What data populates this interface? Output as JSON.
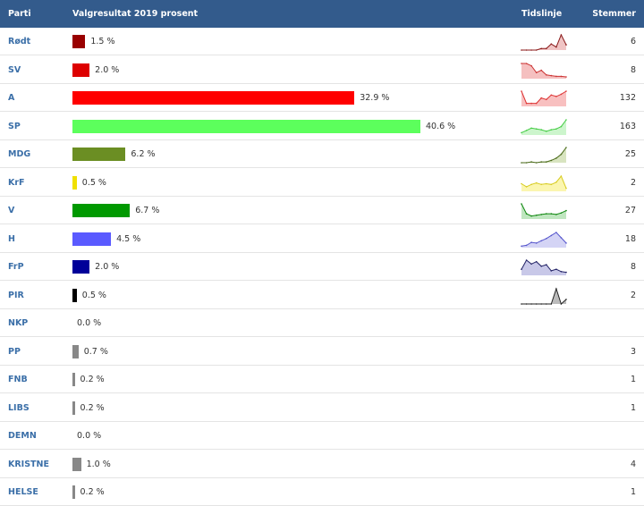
{
  "header": {
    "party": "Parti",
    "result": "Valgresultat 2019 prosent",
    "timeline": "Tidslinje",
    "votes": "Stemmer"
  },
  "chart_data": {
    "type": "bar",
    "title": "Valgresultat 2019 prosent",
    "xlim": [
      0,
      40.6
    ],
    "rows": [
      {
        "party": "Rødt",
        "value": 1.5,
        "label": "1.5 %",
        "votes": "6",
        "color": "#990000",
        "spark_color": "#8b1a1a",
        "spark_fill": "#f0c4c4",
        "timeline": [
          0,
          0,
          0,
          0,
          0.1,
          0.1,
          0.4,
          0.2,
          1.0,
          0.35
        ]
      },
      {
        "party": "SV",
        "value": 2.0,
        "label": "2.0 %",
        "votes": "8",
        "color": "#dd0000",
        "spark_color": "#cc3333",
        "spark_fill": "#f5c0c0",
        "timeline": [
          1.0,
          1.0,
          0.85,
          0.4,
          0.55,
          0.25,
          0.2,
          0.15,
          0.15,
          0.12
        ]
      },
      {
        "party": "A",
        "value": 32.9,
        "label": "32.9 %",
        "votes": "132",
        "color": "#ff0000",
        "spark_color": "#dd3333",
        "spark_fill": "#f8c0c0",
        "timeline": [
          1.0,
          0.2,
          0.2,
          0.2,
          0.55,
          0.45,
          0.75,
          0.65,
          0.8,
          1.0
        ]
      },
      {
        "party": "SP",
        "value": 40.6,
        "label": "40.6 %",
        "votes": "163",
        "color": "#5cff5c",
        "spark_color": "#44cc44",
        "spark_fill": "#ccf5cc",
        "timeline": [
          0.15,
          0.3,
          0.45,
          0.4,
          0.35,
          0.25,
          0.35,
          0.4,
          0.55,
          1.0
        ]
      },
      {
        "party": "MDG",
        "value": 6.2,
        "label": "6.2 %",
        "votes": "25",
        "color": "#6b8e23",
        "spark_color": "#4a6a1a",
        "spark_fill": "#d8e4c0",
        "timeline": [
          0,
          0,
          0.05,
          0,
          0.05,
          0.05,
          0.15,
          0.3,
          0.55,
          1.0
        ]
      },
      {
        "party": "KrF",
        "value": 0.5,
        "label": "0.5 %",
        "votes": "2",
        "color": "#f0e000",
        "spark_color": "#d8cc22",
        "spark_fill": "#fbf6b0",
        "timeline": [
          0.5,
          0.3,
          0.45,
          0.55,
          0.45,
          0.5,
          0.45,
          0.6,
          1.0,
          0.2
        ]
      },
      {
        "party": "V",
        "value": 6.7,
        "label": "6.7 %",
        "votes": "27",
        "color": "#009900",
        "spark_color": "#118811",
        "spark_fill": "#bfe6bf",
        "timeline": [
          1.0,
          0.35,
          0.2,
          0.25,
          0.3,
          0.35,
          0.35,
          0.3,
          0.4,
          0.55
        ]
      },
      {
        "party": "H",
        "value": 4.5,
        "label": "4.5 %",
        "votes": "18",
        "color": "#5a5aff",
        "spark_color": "#5555cc",
        "spark_fill": "#d4d4f5",
        "timeline": [
          0.1,
          0.15,
          0.35,
          0.3,
          0.45,
          0.6,
          0.8,
          1.0,
          0.65,
          0.3
        ]
      },
      {
        "party": "FrP",
        "value": 2.0,
        "label": "2.0 %",
        "votes": "8",
        "color": "#000099",
        "spark_color": "#222266",
        "spark_fill": "#c8c8e8",
        "timeline": [
          0.4,
          1.0,
          0.75,
          0.9,
          0.6,
          0.7,
          0.3,
          0.4,
          0.25,
          0.2
        ]
      },
      {
        "party": "PIR",
        "value": 0.5,
        "label": "0.5 %",
        "votes": "2",
        "color": "#000000",
        "spark_color": "#222222",
        "spark_fill": "#bbbbbb",
        "timeline": [
          0,
          0,
          0,
          0,
          0,
          0,
          0,
          1.0,
          0,
          0.3
        ]
      },
      {
        "party": "NKP",
        "value": 0.0,
        "label": "0.0 %",
        "votes": "",
        "color": "#888888"
      },
      {
        "party": "PP",
        "value": 0.7,
        "label": "0.7 %",
        "votes": "3",
        "color": "#888888"
      },
      {
        "party": "FNB",
        "value": 0.2,
        "label": "0.2 %",
        "votes": "1",
        "color": "#888888"
      },
      {
        "party": "LIBS",
        "value": 0.2,
        "label": "0.2 %",
        "votes": "1",
        "color": "#888888"
      },
      {
        "party": "DEMN",
        "value": 0.0,
        "label": "0.0 %",
        "votes": "",
        "color": "#888888"
      },
      {
        "party": "KRISTNE",
        "value": 1.0,
        "label": "1.0 %",
        "votes": "4",
        "color": "#888888"
      },
      {
        "party": "HELSE",
        "value": 0.2,
        "label": "0.2 %",
        "votes": "1",
        "color": "#888888"
      }
    ]
  }
}
